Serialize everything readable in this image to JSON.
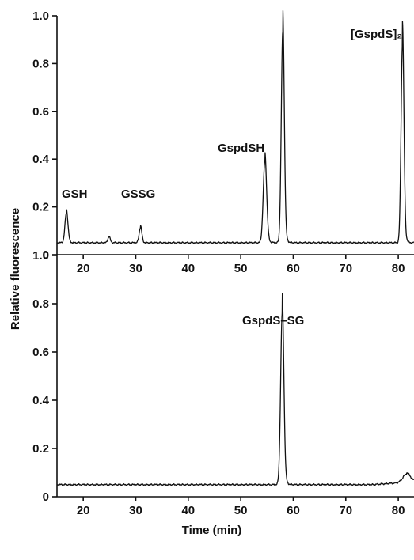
{
  "chart_data": [
    {
      "type": "line",
      "xlabel": "",
      "ylabel": "",
      "xlim": [
        15,
        83
      ],
      "ylim": [
        0,
        1.0
      ],
      "x_ticks": [
        "20",
        "30",
        "40",
        "50",
        "60",
        "70",
        "80"
      ],
      "y_ticks": [
        "0",
        "0.2",
        "0.4",
        "0.6",
        "0.8",
        "1.0"
      ],
      "grid": false,
      "baseline": 0.05,
      "peaks": [
        {
          "label": "GSH",
          "x": 16.8,
          "height": 0.175
        },
        {
          "label": "",
          "x": 24.9,
          "height": 0.075
        },
        {
          "label": "GSSG",
          "x": 30.9,
          "height": 0.115
        },
        {
          "label": "GspdSH",
          "x": 54.6,
          "height": 0.39
        },
        {
          "label": "",
          "x": 58.0,
          "height": 0.93
        },
        {
          "label": "[GspdS]₂",
          "x": 80.8,
          "height": 0.88
        }
      ]
    },
    {
      "type": "line",
      "xlabel": "Time (min)",
      "ylabel": "",
      "xlim": [
        15,
        83
      ],
      "ylim": [
        0,
        1.0
      ],
      "x_ticks": [
        "20",
        "30",
        "40",
        "50",
        "60",
        "70",
        "80"
      ],
      "y_ticks": [
        "0",
        "0.2",
        "0.4",
        "0.6",
        "0.8",
        "1.0"
      ],
      "grid": false,
      "baseline": 0.05,
      "peaks": [
        {
          "label": "GspdS–SG",
          "x": 57.9,
          "height": 0.76
        },
        {
          "label": "",
          "x": 81.6,
          "height": 0.085
        }
      ]
    }
  ],
  "shared_ylabel": "Relative fluorescence"
}
